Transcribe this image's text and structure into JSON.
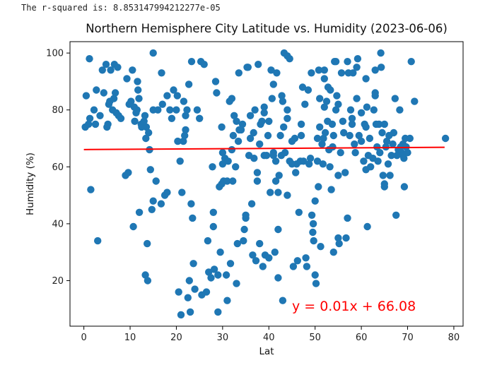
{
  "output": {
    "r_squared_text": "The r-squared is: 8.853147994212277e-05"
  },
  "chart_data": {
    "type": "scatter",
    "title": "Northern Hemisphere City Latitude vs. Humidity (2023-06-06)",
    "xlabel": "Lat",
    "ylabel": "Humidity (%)",
    "xlim": [
      -3,
      82
    ],
    "ylim": [
      4,
      104
    ],
    "xticks": [
      0,
      10,
      20,
      30,
      40,
      50,
      60,
      70,
      80
    ],
    "yticks": [
      20,
      40,
      60,
      80,
      100
    ],
    "point_color": "#1f77b4",
    "line_color": "#ff0000",
    "regression": {
      "slope": 0.01,
      "intercept": 66.08,
      "x_range": [
        0,
        78
      ]
    },
    "equation_label": "y = 0.01x + 66.08",
    "equation_position": {
      "x": 45,
      "y": 11
    },
    "points": [
      [
        0.3,
        74
      ],
      [
        0.5,
        85
      ],
      [
        1,
        75
      ],
      [
        1.2,
        98
      ],
      [
        1.3,
        77
      ],
      [
        1.5,
        52
      ],
      [
        2.2,
        80
      ],
      [
        2.5,
        75
      ],
      [
        2.7,
        87
      ],
      [
        3,
        34
      ],
      [
        3.5,
        78
      ],
      [
        4,
        94
      ],
      [
        4.3,
        86
      ],
      [
        4.8,
        96
      ],
      [
        5,
        74
      ],
      [
        5.2,
        75
      ],
      [
        5.4,
        82
      ],
      [
        5.6,
        83
      ],
      [
        5.8,
        94
      ],
      [
        6.2,
        80
      ],
      [
        6.5,
        84
      ],
      [
        6.6,
        96
      ],
      [
        6.8,
        86
      ],
      [
        7,
        79
      ],
      [
        7.3,
        95
      ],
      [
        7.5,
        78
      ],
      [
        8,
        77
      ],
      [
        9,
        57
      ],
      [
        9.3,
        91
      ],
      [
        9.6,
        58
      ],
      [
        9.8,
        82
      ],
      [
        10.2,
        83
      ],
      [
        10.5,
        94
      ],
      [
        10.7,
        39
      ],
      [
        10.9,
        81
      ],
      [
        11,
        76
      ],
      [
        11.3,
        79
      ],
      [
        11.5,
        80
      ],
      [
        11.6,
        90
      ],
      [
        11.7,
        87
      ],
      [
        11.9,
        84
      ],
      [
        12,
        44
      ],
      [
        12.4,
        75
      ],
      [
        12.5,
        74
      ],
      [
        13,
        76
      ],
      [
        13.2,
        78
      ],
      [
        13.3,
        22
      ],
      [
        13.4,
        70
      ],
      [
        13.5,
        74
      ],
      [
        13.7,
        33
      ],
      [
        13.8,
        20
      ],
      [
        14,
        72
      ],
      [
        14.2,
        66
      ],
      [
        14.4,
        59
      ],
      [
        14.7,
        45
      ],
      [
        15,
        48
      ],
      [
        15,
        100
      ],
      [
        15,
        80
      ],
      [
        15.6,
        55
      ],
      [
        16,
        80
      ],
      [
        16.7,
        47
      ],
      [
        16.8,
        93
      ],
      [
        17,
        82
      ],
      [
        17.5,
        50
      ],
      [
        18,
        51
      ],
      [
        18,
        85
      ],
      [
        18.6,
        80
      ],
      [
        19,
        77
      ],
      [
        19.4,
        87
      ],
      [
        20,
        80
      ],
      [
        20.2,
        85
      ],
      [
        20.3,
        69
      ],
      [
        20.5,
        16
      ],
      [
        20.8,
        62
      ],
      [
        21,
        8
      ],
      [
        21.2,
        51
      ],
      [
        21.5,
        69
      ],
      [
        21.6,
        83
      ],
      [
        21.8,
        71
      ],
      [
        22,
        73
      ],
      [
        22,
        78
      ],
      [
        22.3,
        80
      ],
      [
        22.5,
        14
      ],
      [
        22.7,
        89
      ],
      [
        22.8,
        20
      ],
      [
        23,
        9
      ],
      [
        23.2,
        47
      ],
      [
        23.3,
        97
      ],
      [
        23.5,
        42
      ],
      [
        23.7,
        26
      ],
      [
        24,
        17
      ],
      [
        24.5,
        80
      ],
      [
        25,
        77
      ],
      [
        25.3,
        97
      ],
      [
        25.5,
        15
      ],
      [
        26,
        96
      ],
      [
        26.5,
        16
      ],
      [
        26.8,
        34
      ],
      [
        27,
        23
      ],
      [
        27.5,
        21
      ],
      [
        27.8,
        60
      ],
      [
        28,
        44
      ],
      [
        28,
        39
      ],
      [
        28.2,
        24
      ],
      [
        28.5,
        90
      ],
      [
        28.7,
        86
      ],
      [
        29,
        9
      ],
      [
        29,
        22
      ],
      [
        29.3,
        53
      ],
      [
        29.5,
        30
      ],
      [
        29.8,
        54
      ],
      [
        29.8,
        74
      ],
      [
        30,
        61
      ],
      [
        30,
        65
      ],
      [
        30.2,
        55
      ],
      [
        30.5,
        63
      ],
      [
        30.8,
        22
      ],
      [
        31,
        13
      ],
      [
        31,
        55
      ],
      [
        31.2,
        62
      ],
      [
        31.5,
        83
      ],
      [
        31.7,
        26
      ],
      [
        32,
        84
      ],
      [
        32,
        66
      ],
      [
        32.2,
        55
      ],
      [
        32.3,
        71
      ],
      [
        32.5,
        78
      ],
      [
        32.8,
        60
      ],
      [
        33,
        76
      ],
      [
        33,
        19
      ],
      [
        33.2,
        33
      ],
      [
        33.4,
        69
      ],
      [
        33.5,
        93
      ],
      [
        33.6,
        73
      ],
      [
        34,
        73
      ],
      [
        34.3,
        75
      ],
      [
        34.5,
        34
      ],
      [
        34.7,
        38
      ],
      [
        35,
        42
      ],
      [
        35,
        43
      ],
      [
        35.3,
        95
      ],
      [
        35.5,
        95
      ],
      [
        35.7,
        64
      ],
      [
        36,
        70
      ],
      [
        36,
        78
      ],
      [
        36.3,
        47
      ],
      [
        36.5,
        29
      ],
      [
        36.7,
        72
      ],
      [
        36.8,
        63
      ],
      [
        37,
        80
      ],
      [
        37.2,
        27
      ],
      [
        37.5,
        55
      ],
      [
        37.5,
        58
      ],
      [
        37.7,
        96
      ],
      [
        38,
        68
      ],
      [
        38,
        33
      ],
      [
        38.2,
        75
      ],
      [
        38.5,
        76
      ],
      [
        38.7,
        25
      ],
      [
        39,
        64
      ],
      [
        39,
        81
      ],
      [
        39,
        79
      ],
      [
        39.2,
        29
      ],
      [
        39.5,
        64
      ],
      [
        39.8,
        71
      ],
      [
        40,
        76
      ],
      [
        40,
        28
      ],
      [
        40.3,
        51
      ],
      [
        40.5,
        94
      ],
      [
        40.7,
        84
      ],
      [
        41,
        89
      ],
      [
        41,
        64
      ],
      [
        41,
        65
      ],
      [
        41.3,
        30
      ],
      [
        41.5,
        55
      ],
      [
        41.5,
        62
      ],
      [
        41.7,
        93
      ],
      [
        42,
        38
      ],
      [
        42,
        21
      ],
      [
        42,
        51
      ],
      [
        42.2,
        57
      ],
      [
        42.5,
        71
      ],
      [
        42.7,
        64
      ],
      [
        42.8,
        85
      ],
      [
        43,
        13
      ],
      [
        43,
        83
      ],
      [
        43.2,
        74
      ],
      [
        43.3,
        100
      ],
      [
        43.5,
        65
      ],
      [
        44,
        99
      ],
      [
        44,
        80
      ],
      [
        44,
        77
      ],
      [
        44,
        50
      ],
      [
        44.5,
        98
      ],
      [
        44.5,
        62
      ],
      [
        45,
        61
      ],
      [
        45,
        69
      ],
      [
        45.3,
        25
      ],
      [
        45.6,
        70
      ],
      [
        45.8,
        58
      ],
      [
        46,
        61
      ],
      [
        46.2,
        27
      ],
      [
        46.5,
        44
      ],
      [
        46.8,
        62
      ],
      [
        47,
        75
      ],
      [
        47,
        71
      ],
      [
        47.3,
        88
      ],
      [
        47.5,
        62
      ],
      [
        47.8,
        82
      ],
      [
        48,
        28
      ],
      [
        48.2,
        25
      ],
      [
        48.5,
        87
      ],
      [
        48.7,
        61
      ],
      [
        49,
        63
      ],
      [
        49.2,
        93
      ],
      [
        49.3,
        43
      ],
      [
        49.5,
        37
      ],
      [
        49.6,
        40
      ],
      [
        49.7,
        34
      ],
      [
        50,
        48
      ],
      [
        50,
        22
      ],
      [
        50.2,
        19
      ],
      [
        50.5,
        62
      ],
      [
        50.5,
        70
      ],
      [
        50.7,
        53
      ],
      [
        50.8,
        94
      ],
      [
        51,
        84
      ],
      [
        51,
        74
      ],
      [
        51.2,
        32
      ],
      [
        51.5,
        68
      ],
      [
        51.7,
        61
      ],
      [
        51.8,
        70
      ],
      [
        52,
        94
      ],
      [
        52,
        81
      ],
      [
        52,
        91
      ],
      [
        52.2,
        72
      ],
      [
        52.5,
        83
      ],
      [
        52.7,
        76
      ],
      [
        52.8,
        88
      ],
      [
        53,
        66
      ],
      [
        53.2,
        60
      ],
      [
        53.3,
        87
      ],
      [
        53.5,
        52
      ],
      [
        53.7,
        75
      ],
      [
        53.8,
        67
      ],
      [
        54,
        71
      ],
      [
        54,
        30
      ],
      [
        54.2,
        97
      ],
      [
        54.5,
        97
      ],
      [
        54.5,
        80
      ],
      [
        54.7,
        85
      ],
      [
        55,
        82
      ],
      [
        55,
        35
      ],
      [
        55,
        57
      ],
      [
        55.2,
        33
      ],
      [
        55.5,
        65
      ],
      [
        55.7,
        93
      ],
      [
        56,
        76
      ],
      [
        56.2,
        72
      ],
      [
        56.5,
        58
      ],
      [
        56.7,
        35
      ],
      [
        57,
        97
      ],
      [
        57,
        42
      ],
      [
        57.2,
        93
      ],
      [
        57.5,
        71
      ],
      [
        57.7,
        80
      ],
      [
        58,
        75
      ],
      [
        58,
        77
      ],
      [
        58.2,
        93
      ],
      [
        58.5,
        68
      ],
      [
        58.7,
        65
      ],
      [
        59,
        84
      ],
      [
        59,
        95
      ],
      [
        59.2,
        98
      ],
      [
        59.5,
        71
      ],
      [
        60,
        79
      ],
      [
        60,
        69
      ],
      [
        60.5,
        62
      ],
      [
        60.7,
        75
      ],
      [
        61,
        74
      ],
      [
        61,
        91
      ],
      [
        61,
        59
      ],
      [
        61.2,
        81
      ],
      [
        61.3,
        39
      ],
      [
        61.5,
        64
      ],
      [
        61.8,
        70
      ],
      [
        62,
        60
      ],
      [
        62.5,
        63
      ],
      [
        62.7,
        80
      ],
      [
        63,
        94
      ],
      [
        63,
        86
      ],
      [
        63,
        85
      ],
      [
        63.2,
        75
      ],
      [
        63.4,
        67
      ],
      [
        63.6,
        62
      ],
      [
        63.8,
        75
      ],
      [
        64,
        65
      ],
      [
        64.2,
        100
      ],
      [
        64.3,
        95
      ],
      [
        64.5,
        72
      ],
      [
        64.7,
        57
      ],
      [
        65,
        54
      ],
      [
        65,
        53
      ],
      [
        65,
        75
      ],
      [
        65.3,
        67
      ],
      [
        65.5,
        69
      ],
      [
        65.8,
        61
      ],
      [
        66,
        71
      ],
      [
        66.2,
        57
      ],
      [
        66.5,
        64
      ],
      [
        66.8,
        68
      ],
      [
        67,
        72
      ],
      [
        67.3,
        84
      ],
      [
        67.5,
        43
      ],
      [
        67.7,
        64
      ],
      [
        68,
        66
      ],
      [
        68.3,
        80
      ],
      [
        68.5,
        67
      ],
      [
        68.7,
        65
      ],
      [
        69,
        68
      ],
      [
        69,
        64
      ],
      [
        69.2,
        63
      ],
      [
        69.3,
        53
      ],
      [
        69.5,
        70
      ],
      [
        69.7,
        67
      ],
      [
        70,
        65
      ],
      [
        70.5,
        70
      ],
      [
        70.8,
        97
      ],
      [
        71.5,
        83
      ],
      [
        78.2,
        70
      ]
    ]
  }
}
